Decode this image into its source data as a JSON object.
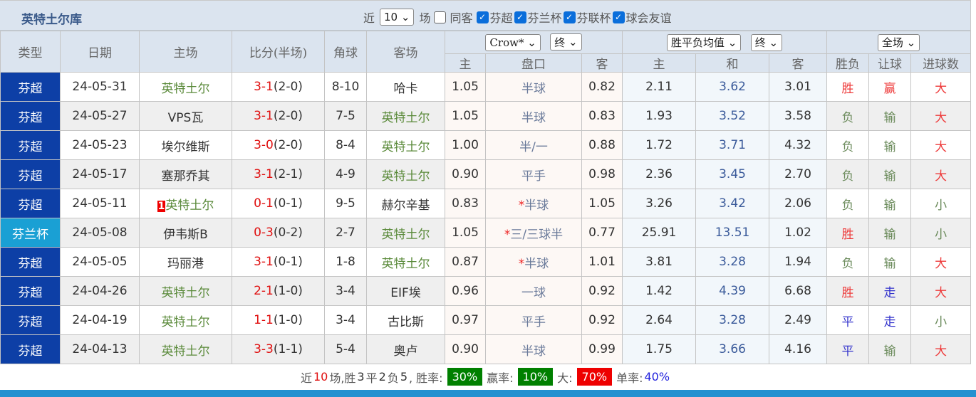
{
  "title": "英特土尔库",
  "filters": {
    "recent_prefix": "近",
    "recent_count": "10",
    "recent_suffix": "场",
    "same_label": "同客",
    "leagues": [
      {
        "label": "芬超",
        "checked": true
      },
      {
        "label": "芬兰杯",
        "checked": true
      },
      {
        "label": "芬联杯",
        "checked": true
      },
      {
        "label": "球会友谊",
        "checked": true
      }
    ]
  },
  "header": {
    "type": "类型",
    "date": "日期",
    "home": "主场",
    "score": "比分(半场)",
    "corner": "角球",
    "away": "客场",
    "company_select": "Crow*",
    "phase_select1": "终",
    "odds_select": "胜平负均值",
    "phase_select2": "终",
    "scope_select": "全场",
    "sub": [
      "主",
      "盘口",
      "客",
      "主",
      "和",
      "客",
      "胜负",
      "让球",
      "进球数"
    ]
  },
  "rows": [
    {
      "type": "芬超",
      "date": "24-05-31",
      "home": "英特土尔",
      "ft": "3-1",
      "ht": "(2-0)",
      "corner": "8-10",
      "away": "哈卡",
      "o_h": "1.05",
      "line": "半球",
      "o_a": "0.82",
      "w": "2.11",
      "d": "3.62",
      "l": "3.01",
      "res": "胜",
      "ah": "赢",
      "ou": "大"
    },
    {
      "type": "芬超",
      "date": "24-05-27",
      "home": "VPS瓦",
      "ft": "3-1",
      "ht": "(2-0)",
      "corner": "7-5",
      "away": "英特土尔",
      "o_h": "1.05",
      "line": "半球",
      "o_a": "0.83",
      "w": "1.93",
      "d": "3.52",
      "l": "3.58",
      "res": "负",
      "ah": "输",
      "ou": "大"
    },
    {
      "type": "芬超",
      "date": "24-05-23",
      "home": "埃尔维斯",
      "ft": "3-0",
      "ht": "(2-0)",
      "corner": "8-4",
      "away": "英特土尔",
      "o_h": "1.00",
      "line": "半/一",
      "o_a": "0.88",
      "w": "1.72",
      "d": "3.71",
      "l": "4.32",
      "res": "负",
      "ah": "输",
      "ou": "大"
    },
    {
      "type": "芬超",
      "date": "24-05-17",
      "home": "塞那乔其",
      "ft": "3-1",
      "ht": "(2-1)",
      "corner": "4-9",
      "away": "英特土尔",
      "o_h": "0.90",
      "line": "平手",
      "o_a": "0.98",
      "w": "2.36",
      "d": "3.45",
      "l": "2.70",
      "res": "负",
      "ah": "输",
      "ou": "大"
    },
    {
      "type": "芬超",
      "date": "24-05-11",
      "home": "英特土尔",
      "home_rank": "1",
      "ft": "0-1",
      "ht": "(0-1)",
      "corner": "9-5",
      "away": "赫尔辛基",
      "o_h": "0.83",
      "line": "半球",
      "line_star": "*",
      "o_a": "1.05",
      "w": "3.26",
      "d": "3.42",
      "l": "2.06",
      "res": "负",
      "ah": "输",
      "ou": "小"
    },
    {
      "type": "芬兰杯",
      "cup": true,
      "date": "24-05-08",
      "home": "伊韦斯B",
      "ft": "0-3",
      "ht": "(0-2)",
      "corner": "2-7",
      "away": "英特土尔",
      "o_h": "1.05",
      "line": "三/三球半",
      "line_star": "*",
      "o_a": "0.77",
      "w": "25.91",
      "d": "13.51",
      "l": "1.02",
      "res": "胜",
      "ah": "输",
      "ou": "小"
    },
    {
      "type": "芬超",
      "date": "24-05-05",
      "home": "玛丽港",
      "ft": "3-1",
      "ht": "(0-1)",
      "corner": "1-8",
      "away": "英特土尔",
      "o_h": "0.87",
      "line": "半球",
      "line_star": "*",
      "o_a": "1.01",
      "w": "3.81",
      "d": "3.28",
      "l": "1.94",
      "res": "负",
      "ah": "输",
      "ou": "大"
    },
    {
      "type": "芬超",
      "date": "24-04-26",
      "home": "英特土尔",
      "ft": "2-1",
      "ht": "(1-0)",
      "corner": "3-4",
      "away": "EIF埃",
      "o_h": "0.96",
      "line": "一球",
      "o_a": "0.92",
      "w": "1.42",
      "d": "4.39",
      "l": "6.68",
      "res": "胜",
      "ah": "走",
      "ou": "大"
    },
    {
      "type": "芬超",
      "date": "24-04-19",
      "home": "英特土尔",
      "ft": "1-1",
      "ht": "(1-0)",
      "corner": "3-4",
      "away": "古比斯",
      "o_h": "0.97",
      "line": "平手",
      "o_a": "0.92",
      "w": "2.64",
      "d": "3.28",
      "l": "2.49",
      "res": "平",
      "ah": "走",
      "ou": "小"
    },
    {
      "type": "芬超",
      "date": "24-04-13",
      "home": "英特土尔",
      "ft": "3-3",
      "ht": "(1-1)",
      "corner": "5-4",
      "away": "奥卢",
      "o_h": "0.90",
      "line": "半球",
      "o_a": "0.99",
      "w": "1.75",
      "d": "3.66",
      "l": "4.16",
      "res": "平",
      "ah": "输",
      "ou": "大"
    }
  ],
  "summary": {
    "p1": "近",
    "n": "10",
    "p2": "场,胜",
    "win": "3",
    "p3": "平",
    "draw": "2",
    "p4": "负",
    "loss": "5",
    "p5": ", 胜率:",
    "win_rate": "30%",
    "p6": "赢率:",
    "ah_rate": "10%",
    "p7": "大:",
    "over_rate": "70%",
    "p8": "单率:",
    "odd_rate": "40%"
  },
  "colors": {
    "league": "#0d3fa6",
    "cup": "#1aa0d4",
    "badge_green": "#008000",
    "badge_red": "#ee0000",
    "bottom_bar": "#2391d0"
  }
}
